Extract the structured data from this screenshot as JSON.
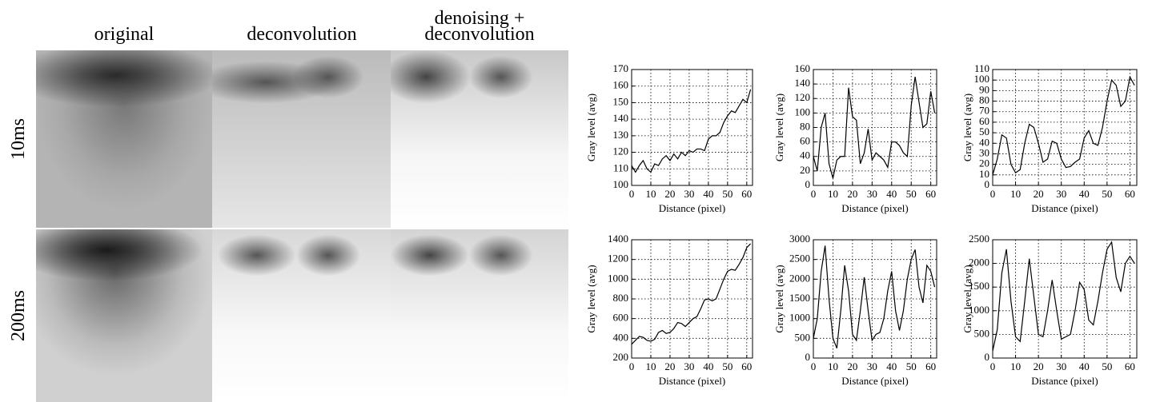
{
  "figure": {
    "column_labels": [
      [
        "original"
      ],
      [
        "deconvolution"
      ],
      [
        "denoising +",
        "deconvolution"
      ]
    ],
    "row_labels": [
      "10ms",
      "200ms"
    ]
  },
  "chart_data": [
    {
      "type": "line",
      "xlabel": "Distance (pixel)",
      "ylabel": "Gray level (avg)",
      "grid": true,
      "color": "#000000",
      "x": [
        0,
        2,
        4,
        6,
        8,
        10,
        12,
        14,
        16,
        18,
        20,
        22,
        24,
        26,
        28,
        30,
        32,
        34,
        36,
        38,
        40,
        42,
        44,
        46,
        48,
        50,
        52,
        54,
        56,
        58,
        60,
        62
      ],
      "values": [
        112,
        108,
        112,
        115,
        110,
        108,
        113,
        112,
        116,
        118,
        115,
        119,
        116,
        120,
        118,
        121,
        120,
        122,
        122,
        121,
        128,
        130,
        130,
        132,
        138,
        142,
        145,
        144,
        148,
        152,
        150,
        158
      ],
      "xlim": [
        0,
        63
      ],
      "xticks": [
        0,
        10,
        20,
        30,
        40,
        50,
        60
      ],
      "ylim": [
        100,
        170
      ],
      "yticks": [
        100,
        110,
        120,
        130,
        140,
        150,
        160,
        170
      ]
    },
    {
      "type": "line",
      "xlabel": "Distance (pixel)",
      "ylabel": "Gray level (avg)",
      "grid": true,
      "color": "#000000",
      "x": [
        0,
        2,
        4,
        6,
        8,
        10,
        12,
        14,
        16,
        18,
        20,
        22,
        24,
        26,
        28,
        30,
        32,
        34,
        36,
        38,
        40,
        42,
        44,
        46,
        48,
        50,
        52,
        54,
        56,
        58,
        60,
        62
      ],
      "values": [
        40,
        20,
        80,
        100,
        30,
        10,
        35,
        40,
        40,
        135,
        95,
        90,
        30,
        45,
        78,
        35,
        45,
        40,
        35,
        25,
        60,
        60,
        55,
        45,
        40,
        110,
        150,
        115,
        80,
        85,
        130,
        100
      ],
      "xlim": [
        0,
        63
      ],
      "xticks": [
        0,
        10,
        20,
        30,
        40,
        50,
        60
      ],
      "ylim": [
        0,
        160
      ],
      "yticks": [
        0,
        20,
        40,
        60,
        80,
        100,
        120,
        140,
        160
      ]
    },
    {
      "type": "line",
      "xlabel": "Distance (pixel)",
      "ylabel": "Gray level (avg)",
      "grid": true,
      "color": "#000000",
      "x": [
        0,
        2,
        4,
        6,
        8,
        10,
        12,
        14,
        16,
        18,
        20,
        22,
        24,
        26,
        28,
        30,
        32,
        34,
        36,
        38,
        40,
        42,
        44,
        46,
        48,
        50,
        52,
        54,
        56,
        58,
        60,
        62
      ],
      "values": [
        10,
        25,
        48,
        45,
        20,
        12,
        15,
        40,
        58,
        55,
        40,
        22,
        25,
        42,
        40,
        25,
        17,
        18,
        22,
        25,
        45,
        52,
        40,
        38,
        55,
        80,
        100,
        95,
        75,
        80,
        103,
        95
      ],
      "xlim": [
        0,
        63
      ],
      "xticks": [
        0,
        10,
        20,
        30,
        40,
        50,
        60
      ],
      "ylim": [
        0,
        110
      ],
      "yticks": [
        0,
        10,
        20,
        30,
        40,
        50,
        60,
        70,
        80,
        90,
        100,
        110
      ]
    },
    {
      "type": "line",
      "xlabel": "Distance (pixel)",
      "ylabel": "Gray level (avg)",
      "grid": true,
      "color": "#000000",
      "x": [
        0,
        2,
        4,
        6,
        8,
        10,
        12,
        14,
        16,
        18,
        20,
        22,
        24,
        26,
        28,
        30,
        32,
        34,
        36,
        38,
        40,
        42,
        44,
        46,
        48,
        50,
        52,
        54,
        56,
        58,
        60,
        62
      ],
      "values": [
        340,
        380,
        420,
        410,
        380,
        370,
        390,
        460,
        480,
        450,
        460,
        500,
        560,
        550,
        520,
        560,
        600,
        620,
        700,
        790,
        800,
        780,
        800,
        900,
        1000,
        1080,
        1100,
        1090,
        1150,
        1220,
        1320,
        1360
      ],
      "xlim": [
        0,
        63
      ],
      "xticks": [
        0,
        10,
        20,
        30,
        40,
        50,
        60
      ],
      "ylim": [
        200,
        1400
      ],
      "yticks": [
        200,
        400,
        600,
        800,
        1000,
        1200,
        1400
      ]
    },
    {
      "type": "line",
      "xlabel": "Distance (pixel)",
      "ylabel": "Gray level (avg)",
      "grid": true,
      "color": "#000000",
      "x": [
        0,
        2,
        4,
        6,
        8,
        10,
        12,
        14,
        16,
        18,
        20,
        22,
        24,
        26,
        28,
        30,
        32,
        34,
        36,
        38,
        40,
        42,
        44,
        46,
        48,
        50,
        52,
        54,
        56,
        58,
        60,
        62
      ],
      "values": [
        500,
        1000,
        2200,
        2850,
        1500,
        500,
        250,
        1200,
        2350,
        1700,
        600,
        450,
        1200,
        2050,
        1200,
        450,
        600,
        650,
        1000,
        1700,
        2200,
        1200,
        700,
        1200,
        2000,
        2500,
        2750,
        1800,
        1400,
        2350,
        2200,
        1800
      ],
      "xlim": [
        0,
        63
      ],
      "xticks": [
        0,
        10,
        20,
        30,
        40,
        50,
        60
      ],
      "ylim": [
        0,
        3000
      ],
      "yticks": [
        0,
        500,
        1000,
        1500,
        2000,
        2500,
        3000
      ]
    },
    {
      "type": "line",
      "xlabel": "Distance (pixel)",
      "ylabel": "Gray level (avg)",
      "grid": true,
      "color": "#000000",
      "x": [
        0,
        2,
        4,
        6,
        8,
        10,
        12,
        14,
        16,
        18,
        20,
        22,
        24,
        26,
        28,
        30,
        32,
        34,
        36,
        38,
        40,
        42,
        44,
        46,
        48,
        50,
        52,
        54,
        56,
        58,
        60,
        62
      ],
      "values": [
        150,
        600,
        1800,
        2300,
        1200,
        450,
        350,
        1200,
        2100,
        1300,
        500,
        450,
        1000,
        1650,
        1000,
        400,
        450,
        500,
        1000,
        1600,
        1450,
        800,
        700,
        1200,
        1800,
        2300,
        2450,
        1700,
        1400,
        2000,
        2150,
        2000
      ],
      "xlim": [
        0,
        63
      ],
      "xticks": [
        0,
        10,
        20,
        30,
        40,
        50,
        60
      ],
      "ylim": [
        0,
        2500
      ],
      "yticks": [
        0,
        500,
        1000,
        1500,
        2000,
        2500
      ]
    }
  ]
}
